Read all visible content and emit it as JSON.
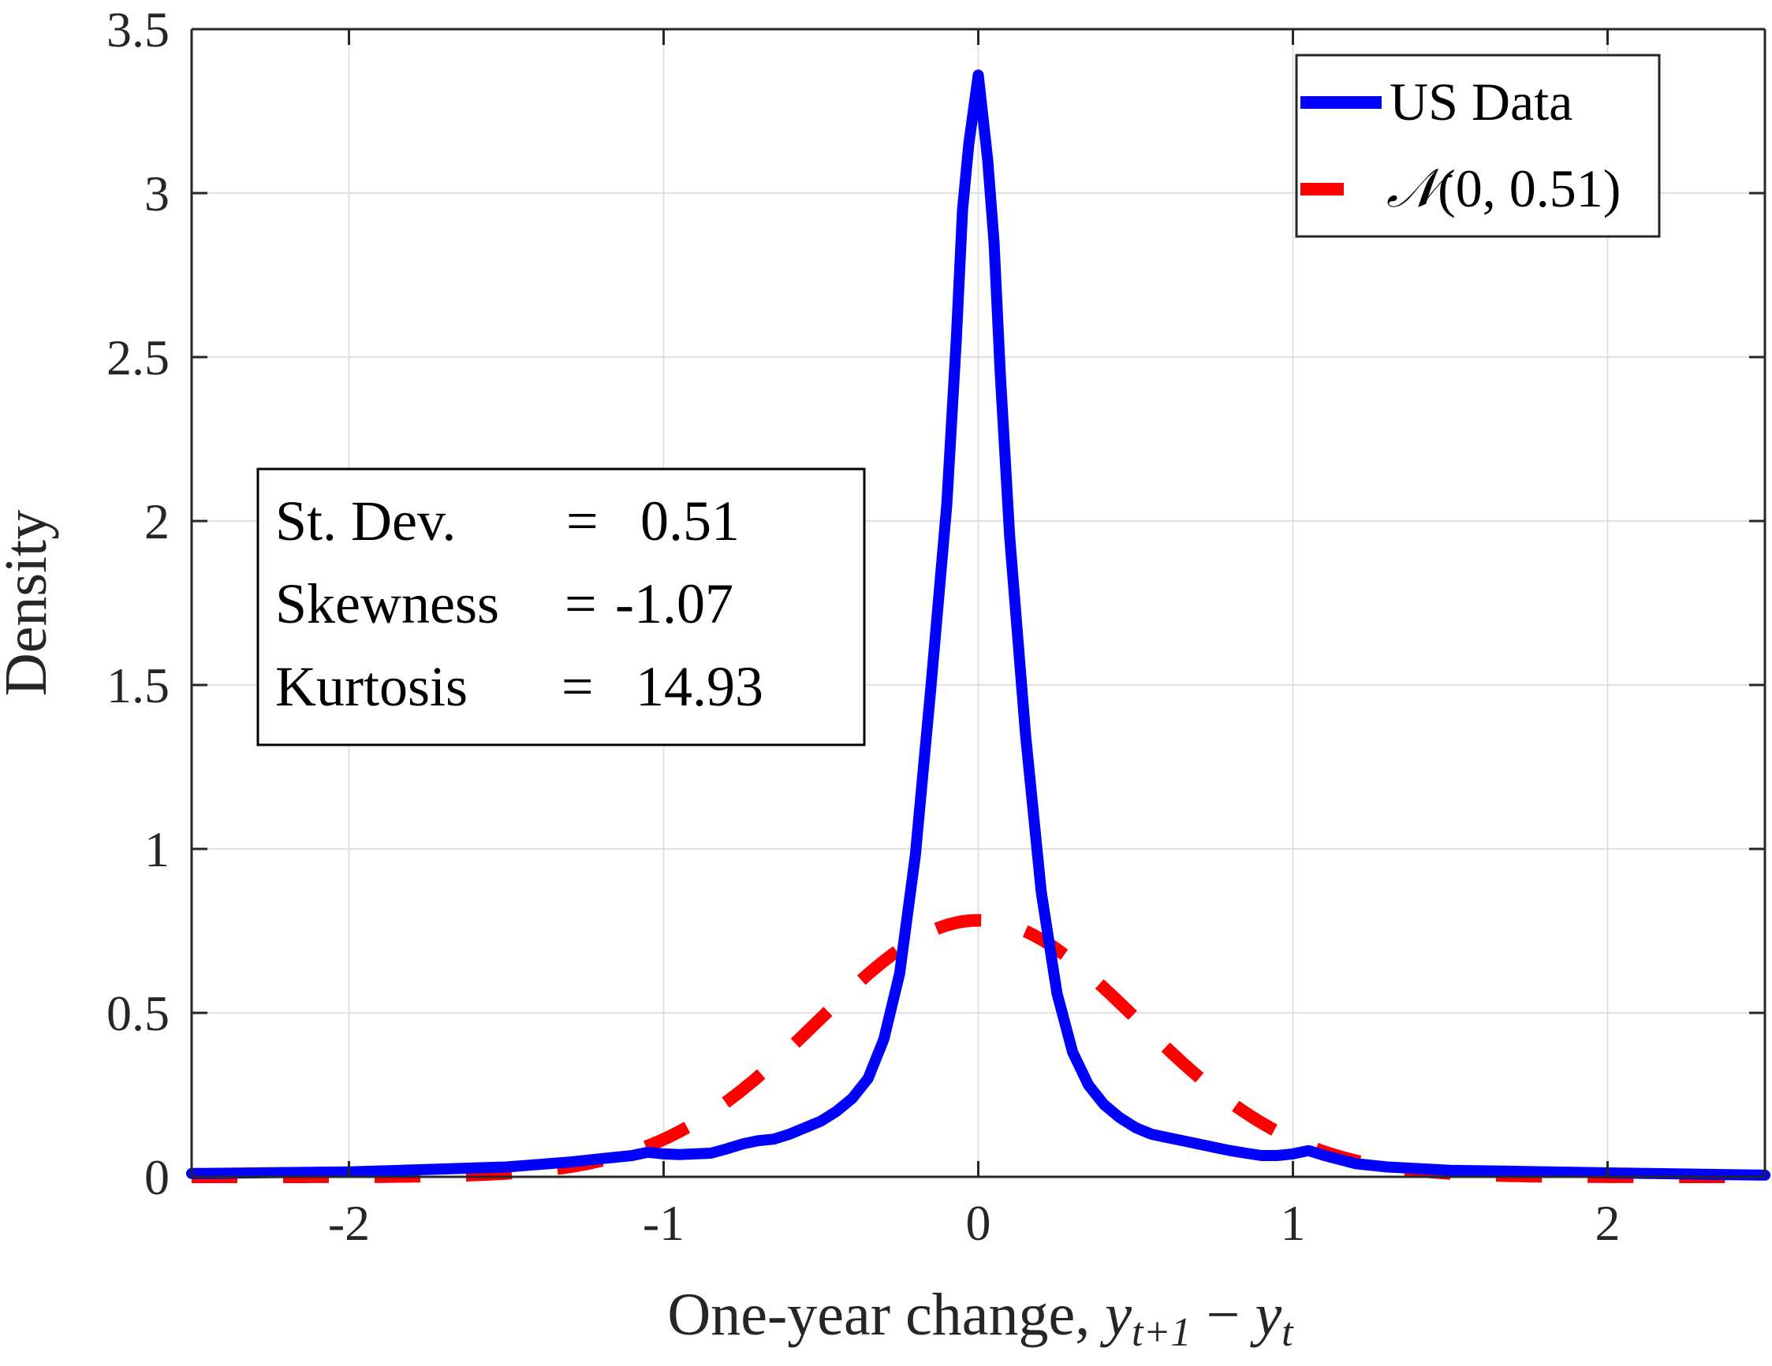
{
  "chart_data": {
    "type": "line",
    "title": "",
    "xlabel": "One-year change, y_{t+1} - y_t",
    "xlabel_parts": {
      "text": "One-year change, ",
      "math_y1": "y",
      "math_sub1": "t+1",
      "minus": " − ",
      "math_y2": "y",
      "math_sub2": "t"
    },
    "ylabel": "Density",
    "xlim": [
      -2.5,
      2.5
    ],
    "ylim": [
      0,
      3.5
    ],
    "xticks": [
      -2,
      -1,
      0,
      1,
      2
    ],
    "xtick_labels": [
      "-2",
      "-1",
      "0",
      "1",
      "2"
    ],
    "yticks": [
      0,
      0.5,
      1,
      1.5,
      2,
      2.5,
      3,
      3.5
    ],
    "ytick_labels": [
      "0",
      "0.5",
      "1",
      "1.5",
      "2",
      "2.5",
      "3",
      "3.5"
    ],
    "grid": true,
    "legend_position": "upper right",
    "series": [
      {
        "name": "US Data",
        "color": "#0000ff",
        "style": "solid",
        "x": [
          -2.5,
          -2.0,
          -1.5,
          -1.3,
          -1.2,
          -1.1,
          -1.05,
          -1.0,
          -0.95,
          -0.9,
          -0.85,
          -0.8,
          -0.75,
          -0.7,
          -0.65,
          -0.6,
          -0.55,
          -0.5,
          -0.45,
          -0.4,
          -0.35,
          -0.3,
          -0.25,
          -0.2,
          -0.15,
          -0.1,
          -0.07,
          -0.05,
          -0.03,
          0.0,
          0.03,
          0.05,
          0.07,
          0.1,
          0.15,
          0.2,
          0.25,
          0.3,
          0.35,
          0.4,
          0.45,
          0.5,
          0.55,
          0.6,
          0.65,
          0.7,
          0.75,
          0.8,
          0.85,
          0.9,
          0.95,
          1.0,
          1.05,
          1.1,
          1.2,
          1.3,
          1.5,
          2.0,
          2.5
        ],
        "values": [
          0.01,
          0.015,
          0.03,
          0.045,
          0.055,
          0.065,
          0.075,
          0.07,
          0.068,
          0.07,
          0.072,
          0.085,
          0.1,
          0.11,
          0.115,
          0.13,
          0.15,
          0.17,
          0.2,
          0.24,
          0.3,
          0.42,
          0.62,
          0.98,
          1.5,
          2.05,
          2.55,
          2.95,
          3.15,
          3.36,
          3.1,
          2.85,
          2.45,
          1.95,
          1.35,
          0.87,
          0.56,
          0.38,
          0.28,
          0.22,
          0.18,
          0.15,
          0.13,
          0.12,
          0.11,
          0.1,
          0.09,
          0.08,
          0.072,
          0.065,
          0.065,
          0.07,
          0.08,
          0.065,
          0.04,
          0.03,
          0.02,
          0.012,
          0.005
        ]
      },
      {
        "name": "N(0, 0.51)",
        "color": "#ff0000",
        "style": "dashed",
        "mean": 0,
        "std": 0.51,
        "peak": 0.78
      }
    ],
    "annotations": [
      {
        "label": "St. Dev.",
        "eq": "=",
        "value": "0.51"
      },
      {
        "label": "Skewness",
        "eq": "=",
        "value": "-1.07"
      },
      {
        "label": "Kurtosis",
        "eq": "=",
        "value": "14.93"
      }
    ]
  },
  "legend": {
    "items": [
      {
        "label": "US Data",
        "color": "#0000ff",
        "style": "solid"
      },
      {
        "label_script_N": "𝒩",
        "label_rest": "(0, 0.51)",
        "color": "#ff0000",
        "style": "dashed"
      }
    ]
  },
  "stats_box": {
    "rows": [
      {
        "label": "St. Dev.",
        "eq": "=",
        "value": "0.51"
      },
      {
        "label": "Skewness",
        "eq": "=",
        "value": "-1.07"
      },
      {
        "label": "Kurtosis",
        "eq": "=",
        "value": "14.93"
      }
    ]
  },
  "colors": {
    "axis": "#262626",
    "grid": "#e0e0e0",
    "us_data": "#0000ff",
    "normal": "#ff0000"
  }
}
